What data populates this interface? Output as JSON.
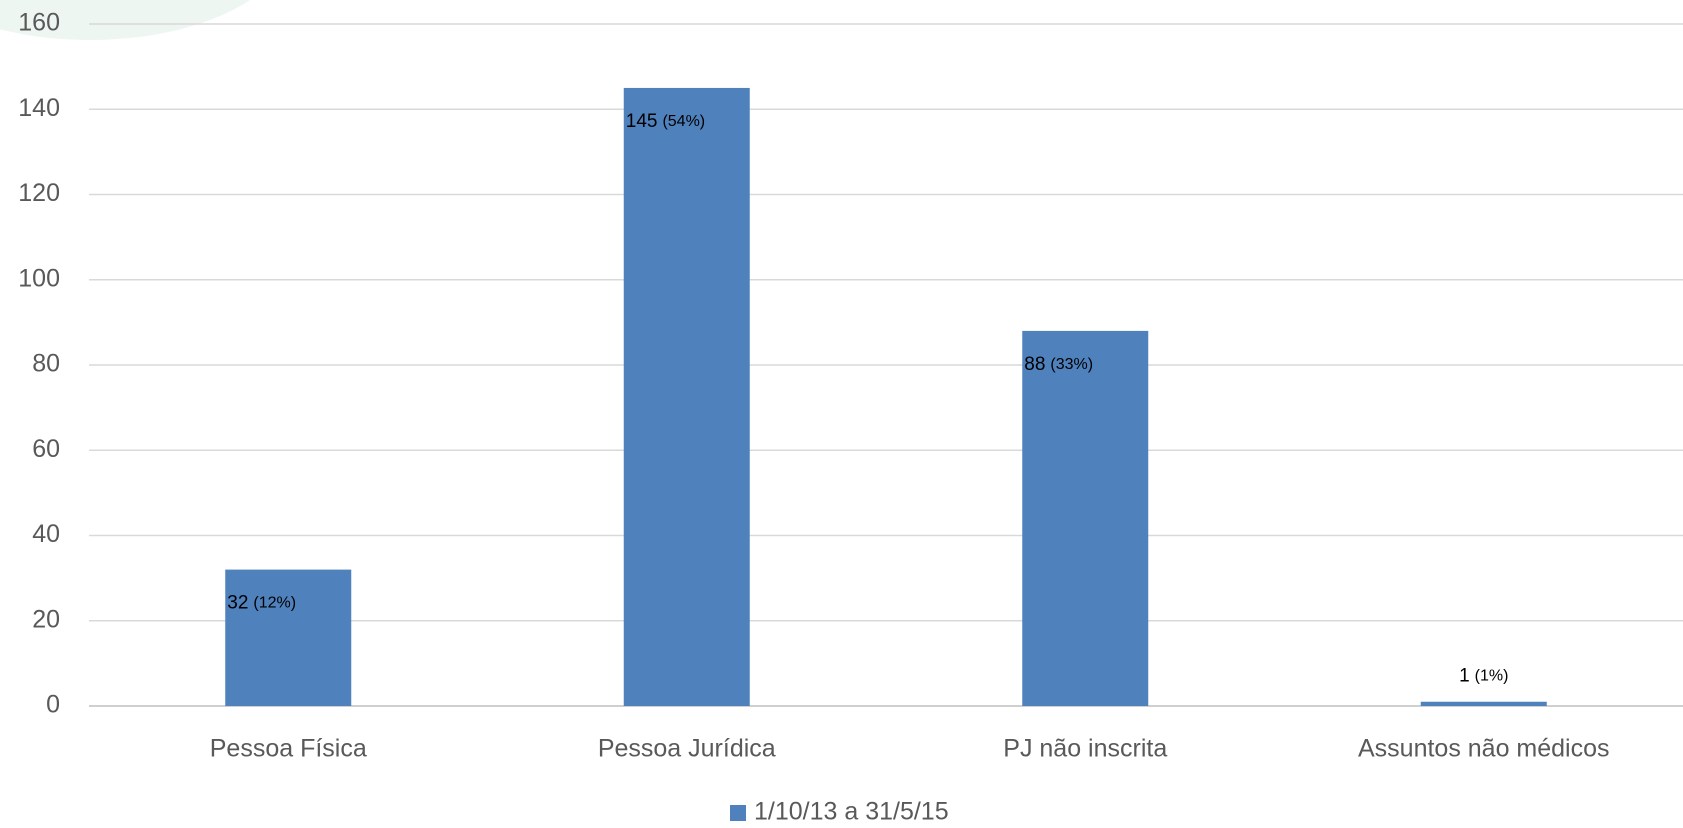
{
  "chart_data": {
    "type": "bar",
    "categories": [
      "Pessoa Física",
      "Pessoa Jurídica",
      "PJ não inscrita",
      "Assuntos não médicos"
    ],
    "series": [
      {
        "name": "1/10/13 a 31/5/15",
        "color": "#4f81bd",
        "values": [
          32,
          145,
          88,
          1
        ],
        "share_labels": [
          "(12%)",
          "(54%)",
          "(33%)",
          "(1%)"
        ]
      }
    ],
    "ylim": [
      0,
      160
    ],
    "yticks": [
      0,
      20,
      40,
      60,
      80,
      100,
      120,
      140,
      160
    ],
    "grid": true,
    "legend": "bottom"
  }
}
